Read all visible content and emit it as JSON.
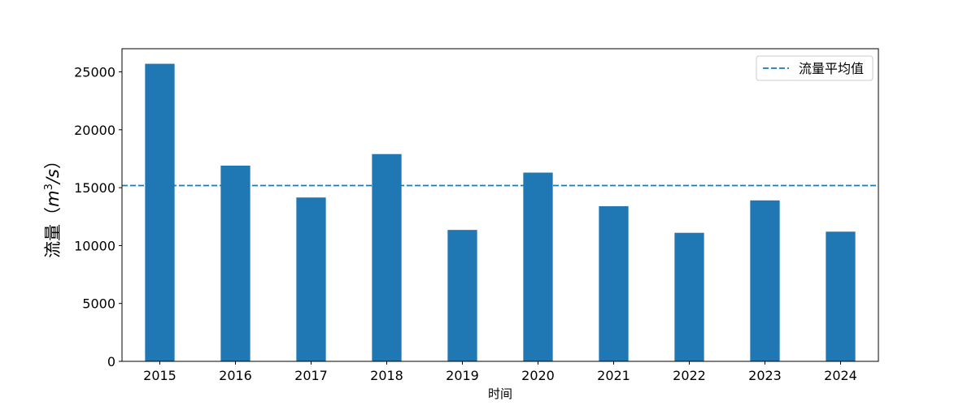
{
  "chart_data": {
    "type": "bar",
    "categories": [
      "2015",
      "2016",
      "2017",
      "2018",
      "2019",
      "2020",
      "2021",
      "2022",
      "2023",
      "2024"
    ],
    "values": [
      25700,
      16900,
      14150,
      17900,
      11350,
      16300,
      13400,
      11100,
      13900,
      11200
    ],
    "xlabel": "时间",
    "ylabel": "流量（m³/s）",
    "ylabel_prefix": "流量（",
    "ylabel_unit_base": "m",
    "ylabel_unit_exp": "3",
    "ylabel_unit_rest": "/s",
    "ylabel_suffix": "）",
    "ylim": [
      0,
      27000
    ],
    "yticks": [
      0,
      5000,
      10000,
      15000,
      20000,
      25000
    ],
    "bar_color": "#1f77b4",
    "mean_line": {
      "label": "流量平均值",
      "value": 15181,
      "color": "#1f77b4",
      "style": "dashed"
    },
    "legend": {
      "placement": "top-right",
      "entries": [
        "流量平均值"
      ]
    },
    "grid": false
  }
}
